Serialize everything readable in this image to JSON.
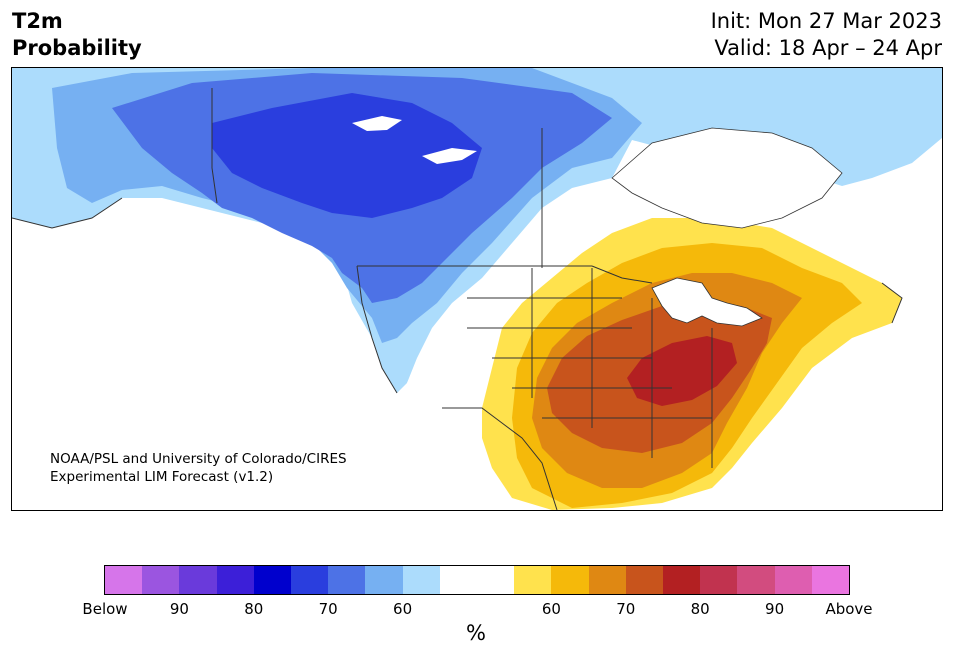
{
  "header": {
    "variable": "T2m",
    "product": "Probability",
    "init": "Init: Mon 27 Mar 2023",
    "valid": "Valid: 18 Apr – 24 Apr"
  },
  "map": {
    "credit_line1": "NOAA/PSL and University of Colorado/CIRES",
    "credit_line2": "Experimental LIM Forecast (v1.2)"
  },
  "colorbar": {
    "unit": "%",
    "bins": [
      {
        "color": "#d675ea"
      },
      {
        "color": "#9b55e0"
      },
      {
        "color": "#6a3adb"
      },
      {
        "color": "#3c1fd8"
      },
      {
        "color": "#0000cd"
      },
      {
        "color": "#2a3ede"
      },
      {
        "color": "#4d72e6"
      },
      {
        "color": "#76b0f2"
      },
      {
        "color": "#acdcfc"
      },
      {
        "color": "#ffffff"
      },
      {
        "color": "#ffffff"
      },
      {
        "color": "#ffe24d"
      },
      {
        "color": "#f5b90a"
      },
      {
        "color": "#df8813"
      },
      {
        "color": "#c8541c"
      },
      {
        "color": "#b32022"
      },
      {
        "color": "#c1334f"
      },
      {
        "color": "#d24c7f"
      },
      {
        "color": "#de5eb0"
      },
      {
        "color": "#ea75e0"
      }
    ],
    "tick_labels": [
      "Below",
      "90",
      "80",
      "70",
      "60",
      "60",
      "70",
      "80",
      "90",
      "Above"
    ]
  },
  "colors": {
    "below_60": "#acdcfc",
    "below_70": "#76b0f2",
    "below_80": "#4d72e6",
    "below_90": "#2a3ede",
    "above_60": "#ffe24d",
    "above_70": "#f5b90a",
    "above_80": "#df8813",
    "above_90": "#c8541c",
    "above_max": "#b32022",
    "borders": "#333333"
  }
}
